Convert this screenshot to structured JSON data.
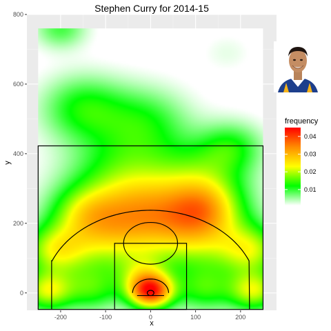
{
  "chart_data": {
    "type": "heatmap",
    "title": "Stephen Curry for 2014-15",
    "xlabel": "x",
    "ylabel": "y",
    "xlim": [
      -275,
      280
    ],
    "ylim": [
      -50,
      800
    ],
    "x_ticks": [
      -200,
      -100,
      0,
      100,
      200
    ],
    "x_tick_labels": [
      "-200",
      "-100",
      "0",
      "100",
      "200"
    ],
    "y_ticks": [
      0,
      200,
      400,
      600,
      800
    ],
    "y_tick_labels": [
      "0",
      "200",
      "400",
      "600",
      "800"
    ],
    "grid": true,
    "legend": {
      "title": "frequency",
      "placement": "right",
      "breaks": [
        0.01,
        0.02,
        0.03,
        0.04
      ],
      "break_labels": [
        "0.01",
        "0.02",
        "0.03",
        "0.04"
      ],
      "range": [
        0.001,
        0.045
      ],
      "color_stops": [
        "#ffffff",
        "#00ff00",
        "#ffff00",
        "#ff8c00",
        "#ff0000"
      ]
    },
    "photo_legend": "player-photo",
    "density_hotspots": [
      {
        "x": 0,
        "y": 5,
        "sigma": 35,
        "weight": 0.04
      },
      {
        "x": -20,
        "y": 60,
        "sigma": 40,
        "weight": 0.01
      },
      {
        "x": -105,
        "y": 175,
        "sigma": 80,
        "weight": 0.02
      },
      {
        "x": 105,
        "y": 175,
        "sigma": 80,
        "weight": 0.02
      },
      {
        "x": 0,
        "y": 230,
        "sigma": 75,
        "weight": 0.014
      },
      {
        "x": 120,
        "y": 245,
        "sigma": 55,
        "weight": 0.013
      },
      {
        "x": -150,
        "y": 235,
        "sigma": 50,
        "weight": 0.008
      },
      {
        "x": -215,
        "y": 120,
        "sigma": 50,
        "weight": 0.017
      },
      {
        "x": 225,
        "y": 120,
        "sigma": 50,
        "weight": 0.017
      },
      {
        "x": -230,
        "y": 5,
        "sigma": 40,
        "weight": 0.02
      },
      {
        "x": 230,
        "y": 5,
        "sigma": 40,
        "weight": 0.02
      },
      {
        "x": -130,
        "y": 10,
        "sigma": 45,
        "weight": 0.012
      },
      {
        "x": 120,
        "y": 10,
        "sigma": 45,
        "weight": 0.012
      },
      {
        "x": -55,
        "y": 330,
        "sigma": 90,
        "weight": 0.013
      },
      {
        "x": 120,
        "y": 335,
        "sigma": 70,
        "weight": 0.011
      },
      {
        "x": -150,
        "y": 530,
        "sigma": 65,
        "weight": 0.012
      },
      {
        "x": -15,
        "y": 490,
        "sigma": 70,
        "weight": 0.01
      },
      {
        "x": 180,
        "y": 420,
        "sigma": 50,
        "weight": 0.01
      },
      {
        "x": -200,
        "y": 760,
        "sigma": 40,
        "weight": 0.009
      },
      {
        "x": 170,
        "y": 690,
        "sigma": 40,
        "weight": 0.002
      }
    ],
    "court_lines": {
      "outer_box": {
        "x": [
          -250,
          250
        ],
        "y": [
          -47.5,
          422.5
        ]
      },
      "paint": {
        "x": [
          -80,
          80
        ],
        "y": [
          -47.5,
          142.5
        ]
      },
      "free_throw_circle": {
        "cx": 0,
        "cy": 142.5,
        "r": 60
      },
      "three_point_corners_x": [
        -220,
        220
      ],
      "three_point_corner_top_y": 92.5,
      "three_point_arc_r": 237.5,
      "restricted_arc_r": 40,
      "hoop": {
        "cx": 0,
        "cy": 0,
        "r": 7.5
      },
      "backboard": {
        "x": [
          -30,
          30
        ],
        "y": -7.5
      }
    }
  }
}
